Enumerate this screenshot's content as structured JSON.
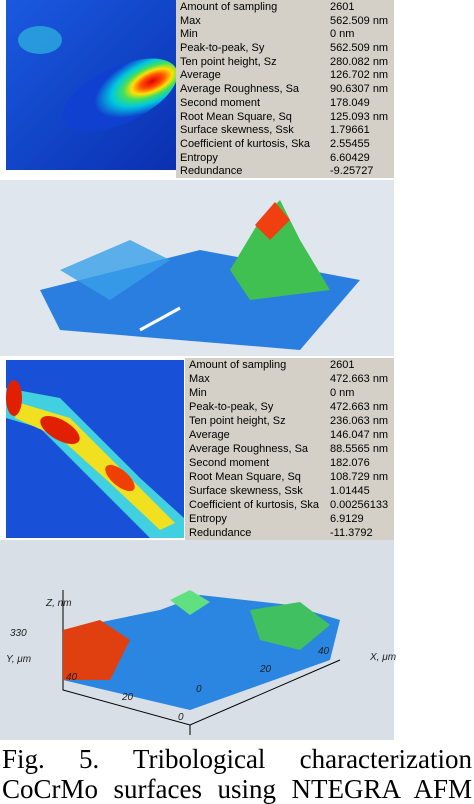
{
  "stats_1": [
    [
      "Amount of sampling",
      "2601"
    ],
    [
      "Max",
      "562.509 nm"
    ],
    [
      "Min",
      "0 nm"
    ],
    [
      "Peak-to-peak, Sy",
      "562.509 nm"
    ],
    [
      "Ten point height, Sz",
      "280.082 nm"
    ],
    [
      "Average",
      "126.702 nm"
    ],
    [
      "Average Roughness, Sa",
      "90.6307 nm"
    ],
    [
      "Second moment",
      "178.049"
    ],
    [
      "Root Mean Square, Sq",
      "125.093 nm"
    ],
    [
      "Surface skewness, Ssk",
      "1.79661"
    ],
    [
      "Coefficient of kurtosis, Ska",
      "2.55455"
    ],
    [
      "Entropy",
      "6.60429"
    ],
    [
      "Redundance",
      "-9.25727"
    ]
  ],
  "stats_2": [
    [
      "Amount of sampling",
      "2601"
    ],
    [
      "Max",
      "472.663 nm"
    ],
    [
      "Min",
      "0 nm"
    ],
    [
      "Peak-to-peak, Sy",
      "472.663 nm"
    ],
    [
      "Ten point height, Sz",
      "236.063 nm"
    ],
    [
      "Average",
      "146.047 nm"
    ],
    [
      "Average Roughness, Sa",
      "88.5565 nm"
    ],
    [
      "Second moment",
      "182.076"
    ],
    [
      "Root Mean Square, Sq",
      "108.729 nm"
    ],
    [
      "Surface skewness, Ssk",
      "1.01445"
    ],
    [
      "Coefficient of kurtosis, Ska",
      "0.00256133"
    ],
    [
      "Entropy",
      "6.9129"
    ],
    [
      "Redundance",
      "-11.3792"
    ]
  ],
  "surface_plot": {
    "z_label": "Z, nm",
    "z_tick": "330",
    "y_label": "Y, μm",
    "x_label": "X, μm",
    "y_ticks": [
      "40",
      "20",
      "0"
    ],
    "x_ticks": [
      "0",
      "20",
      "40"
    ]
  },
  "caption": [
    "Fig. 5. Tribological characterization",
    "CoCrMo surfaces using NTEGRA AFM"
  ]
}
